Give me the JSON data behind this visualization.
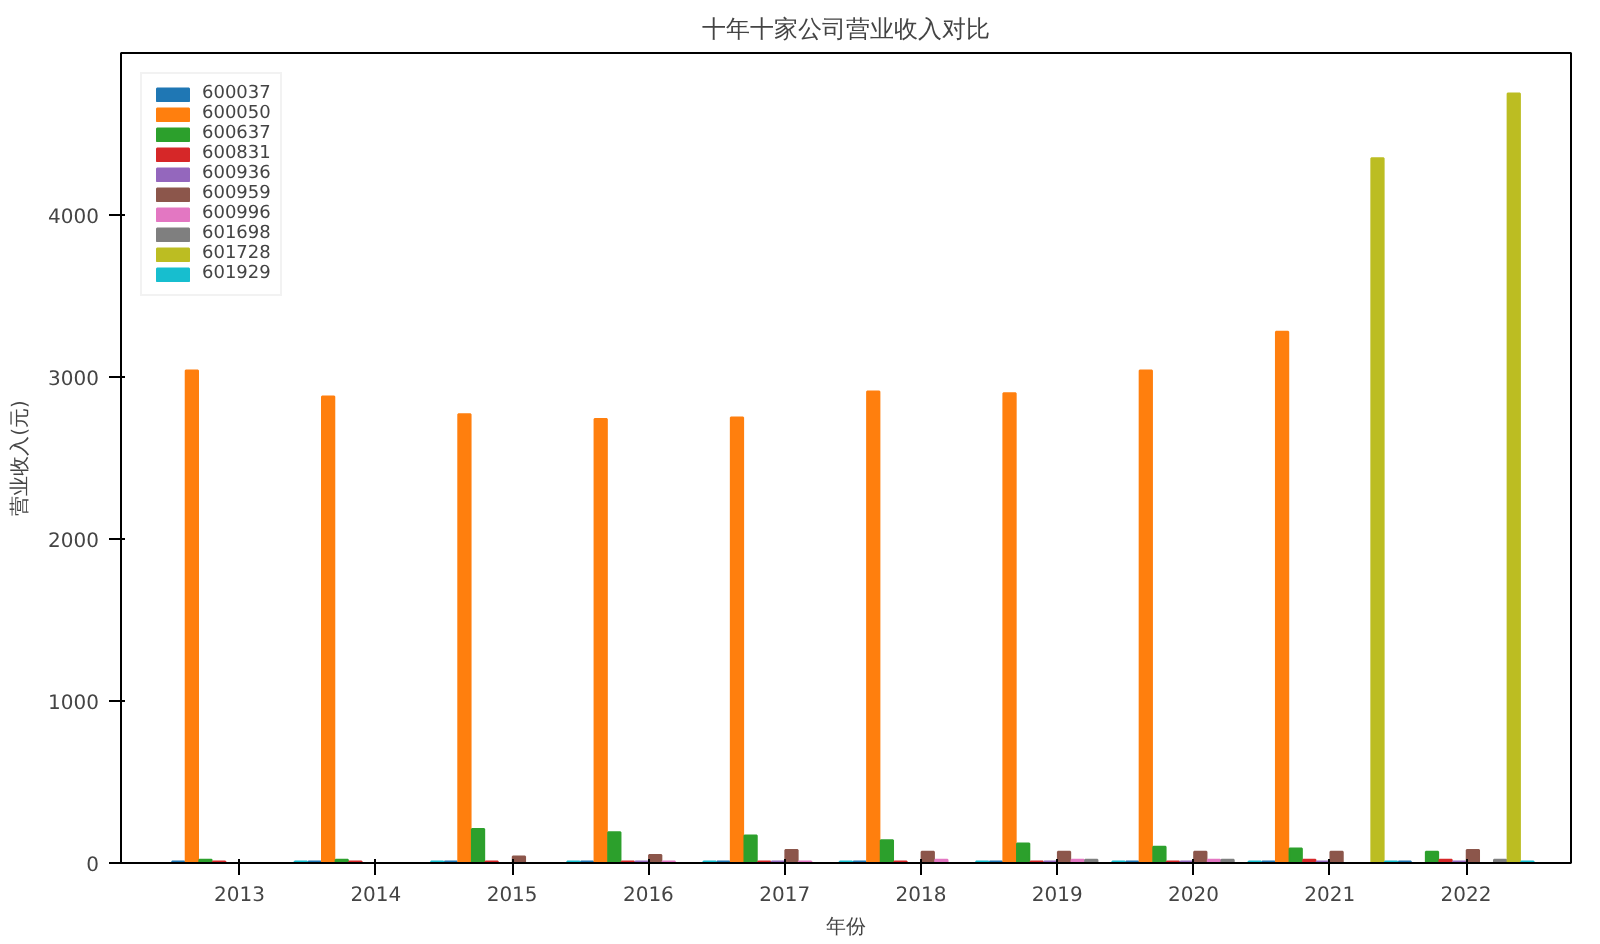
{
  "chart_data": {
    "type": "bar",
    "title": "十年十家公司营业收入对比",
    "xlabel": "年份",
    "ylabel": "营业收入(元)",
    "categories": [
      "2013",
      "2014",
      "2015",
      "2016",
      "2017",
      "2018",
      "2019",
      "2020",
      "2021",
      "2022"
    ],
    "ylim": [
      0,
      5000
    ],
    "yticks": [
      0,
      1000,
      2000,
      3000,
      4000
    ],
    "grid": false,
    "legend": "top left",
    "series": [
      {
        "name": "600037",
        "color": "#1f77b4",
        "values": [
          10,
          10,
          10,
          10,
          10,
          10,
          10,
          10,
          10,
          10
        ]
      },
      {
        "name": "600050",
        "color": "#ff7f0e",
        "values": [
          3040,
          2880,
          2770,
          2740,
          2750,
          2910,
          2900,
          3040,
          3280,
          null
        ]
      },
      {
        "name": "600637",
        "color": "#2ca02c",
        "values": [
          20,
          20,
          210,
          190,
          170,
          140,
          120,
          100,
          90,
          70
        ]
      },
      {
        "name": "600831",
        "color": "#d62728",
        "values": [
          10,
          10,
          10,
          10,
          10,
          10,
          10,
          10,
          20,
          20
        ]
      },
      {
        "name": "600936",
        "color": "#9467bd",
        "values": [
          null,
          null,
          null,
          10,
          10,
          null,
          10,
          10,
          10,
          10
        ]
      },
      {
        "name": "600959",
        "color": "#8c564b",
        "values": [
          null,
          null,
          40,
          50,
          80,
          70,
          70,
          70,
          70,
          80
        ]
      },
      {
        "name": "600996",
        "color": "#e377c2",
        "values": [
          null,
          null,
          null,
          10,
          10,
          20,
          20,
          20,
          null,
          null
        ]
      },
      {
        "name": "601698",
        "color": "#7f7f7f",
        "values": [
          null,
          null,
          null,
          null,
          null,
          null,
          20,
          20,
          null,
          20
        ]
      },
      {
        "name": "601728",
        "color": "#bcbd22",
        "values": [
          null,
          null,
          null,
          null,
          null,
          null,
          null,
          null,
          4350,
          4750
        ]
      },
      {
        "name": "601929",
        "color": "#17becf",
        "values": [
          10,
          10,
          10,
          10,
          10,
          10,
          10,
          10,
          10,
          10
        ]
      }
    ]
  }
}
